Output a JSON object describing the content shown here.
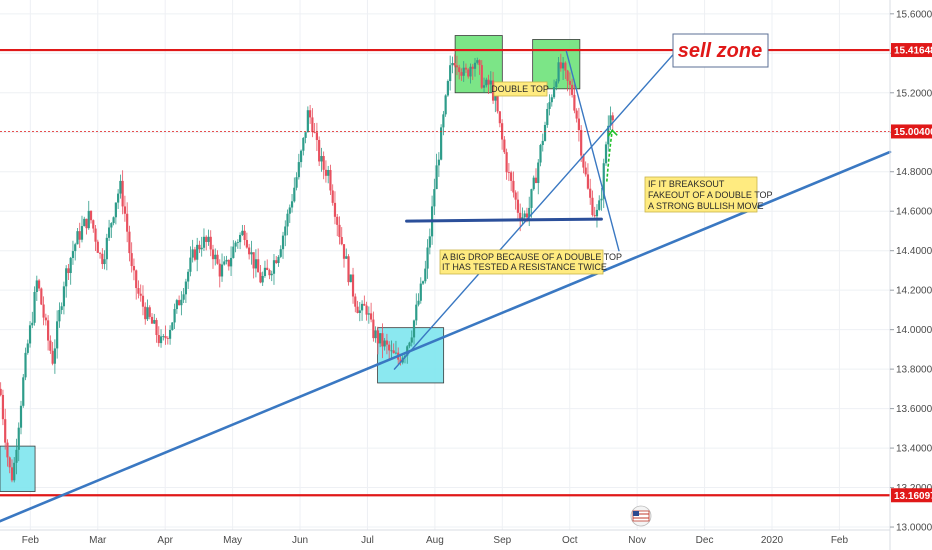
{
  "chart_data": {
    "type": "candlestick",
    "x_axis": {
      "labels": [
        {
          "label": "Feb",
          "month": 1
        },
        {
          "label": "Mar",
          "month": 2
        },
        {
          "label": "Apr",
          "month": 3
        },
        {
          "label": "May",
          "month": 4
        },
        {
          "label": "Jun",
          "month": 5
        },
        {
          "label": "Jul",
          "month": 6
        },
        {
          "label": "Aug",
          "month": 7
        },
        {
          "label": "Sep",
          "month": 8
        },
        {
          "label": "Oct",
          "month": 9
        },
        {
          "label": "Nov",
          "month": 10
        },
        {
          "label": "Dec",
          "month": 11
        },
        {
          "label": "2020",
          "month": 12
        },
        {
          "label": "Feb",
          "month": 13
        }
      ],
      "range": [
        0.55,
        13.75
      ]
    },
    "y_axis": {
      "ticks": [
        "15.60000",
        "15.40000",
        "15.20000",
        "15.00000",
        "14.80000",
        "14.60000",
        "14.40000",
        "14.20000",
        "14.00000",
        "13.80000",
        "13.60000",
        "13.40000",
        "13.20000",
        "13.00000"
      ],
      "range": [
        12.985,
        15.67
      ]
    },
    "price_path": [
      [
        0.55,
        13.7
      ],
      [
        0.6,
        13.55
      ],
      [
        0.68,
        13.3
      ],
      [
        0.74,
        13.25
      ],
      [
        0.8,
        13.45
      ],
      [
        0.88,
        13.7
      ],
      [
        0.95,
        13.9
      ],
      [
        1.02,
        14.05
      ],
      [
        1.1,
        14.25
      ],
      [
        1.18,
        14.1
      ],
      [
        1.26,
        13.95
      ],
      [
        1.33,
        13.85
      ],
      [
        1.42,
        14.05
      ],
      [
        1.5,
        14.25
      ],
      [
        1.58,
        14.35
      ],
      [
        1.68,
        14.45
      ],
      [
        1.78,
        14.52
      ],
      [
        1.88,
        14.58
      ],
      [
        1.96,
        14.48
      ],
      [
        2.05,
        14.35
      ],
      [
        2.12,
        14.42
      ],
      [
        2.2,
        14.55
      ],
      [
        2.28,
        14.68
      ],
      [
        2.34,
        14.72
      ],
      [
        2.42,
        14.55
      ],
      [
        2.5,
        14.3
      ],
      [
        2.6,
        14.18
      ],
      [
        2.72,
        14.08
      ],
      [
        2.85,
        14.0
      ],
      [
        2.95,
        13.92
      ],
      [
        3.05,
        14.0
      ],
      [
        3.18,
        14.12
      ],
      [
        3.3,
        14.25
      ],
      [
        3.42,
        14.38
      ],
      [
        3.55,
        14.45
      ],
      [
        3.68,
        14.42
      ],
      [
        3.8,
        14.3
      ],
      [
        3.92,
        14.32
      ],
      [
        4.05,
        14.45
      ],
      [
        4.18,
        14.5
      ],
      [
        4.3,
        14.35
      ],
      [
        4.42,
        14.25
      ],
      [
        4.55,
        14.3
      ],
      [
        4.68,
        14.4
      ],
      [
        4.8,
        14.55
      ],
      [
        4.9,
        14.7
      ],
      [
        4.98,
        14.82
      ],
      [
        5.05,
        14.95
      ],
      [
        5.12,
        15.1
      ],
      [
        5.18,
        15.05
      ],
      [
        5.26,
        14.9
      ],
      [
        5.34,
        14.82
      ],
      [
        5.42,
        14.8
      ],
      [
        5.5,
        14.65
      ],
      [
        5.58,
        14.5
      ],
      [
        5.66,
        14.38
      ],
      [
        5.74,
        14.25
      ],
      [
        5.82,
        14.15
      ],
      [
        5.9,
        14.08
      ],
      [
        5.98,
        14.12
      ],
      [
        6.06,
        14.0
      ],
      [
        6.16,
        13.95
      ],
      [
        6.26,
        13.92
      ],
      [
        6.36,
        13.87
      ],
      [
        6.46,
        13.85
      ],
      [
        6.56,
        13.9
      ],
      [
        6.66,
        14.0
      ],
      [
        6.76,
        14.15
      ],
      [
        6.86,
        14.3
      ],
      [
        6.93,
        14.5
      ],
      [
        7.0,
        14.75
      ],
      [
        7.08,
        14.95
      ],
      [
        7.16,
        15.15
      ],
      [
        7.22,
        15.3
      ],
      [
        7.28,
        15.38
      ],
      [
        7.36,
        15.35
      ],
      [
        7.44,
        15.28
      ],
      [
        7.5,
        15.32
      ],
      [
        7.58,
        15.38
      ],
      [
        7.66,
        15.3
      ],
      [
        7.74,
        15.22
      ],
      [
        7.82,
        15.25
      ],
      [
        7.9,
        15.15
      ],
      [
        8.0,
        14.95
      ],
      [
        8.08,
        14.8
      ],
      [
        8.16,
        14.7
      ],
      [
        8.24,
        14.6
      ],
      [
        8.32,
        14.57
      ],
      [
        8.4,
        14.62
      ],
      [
        8.48,
        14.75
      ],
      [
        8.56,
        14.9
      ],
      [
        8.64,
        15.05
      ],
      [
        8.72,
        15.18
      ],
      [
        8.8,
        15.3
      ],
      [
        8.88,
        15.33
      ],
      [
        8.96,
        15.25
      ],
      [
        9.04,
        15.2
      ],
      [
        9.12,
        15.05
      ],
      [
        9.2,
        14.85
      ],
      [
        9.28,
        14.68
      ],
      [
        9.36,
        14.6
      ],
      [
        9.42,
        14.58
      ],
      [
        9.48,
        14.72
      ],
      [
        9.54,
        14.95
      ],
      [
        9.6,
        15.12
      ],
      [
        9.65,
        15.1
      ]
    ],
    "highlight_boxes": [
      {
        "color": "#6ee27a",
        "x_range": [
          7.3,
          8.0
        ],
        "y_range": [
          15.2,
          15.49
        ]
      },
      {
        "color": "#6ee27a",
        "x_range": [
          8.45,
          9.15
        ],
        "y_range": [
          15.22,
          15.47
        ]
      },
      {
        "color": "#7ee6ee",
        "x_range": [
          6.15,
          7.13
        ],
        "y_range": [
          13.73,
          14.01
        ]
      },
      {
        "color": "#7ee6ee",
        "x_range": [
          0.55,
          1.07
        ],
        "y_range": [
          13.18,
          13.41
        ]
      }
    ],
    "trend_lines": [
      {
        "name": "support-trendline",
        "color": "#3a78c2",
        "width": 2.6,
        "from": [
          0.55,
          13.03
        ],
        "to": [
          13.75,
          14.9
        ]
      },
      {
        "name": "rising-channel-line",
        "color": "#3a78c2",
        "width": 1.4,
        "from": [
          6.4,
          13.8
        ],
        "to": [
          10.55,
          15.4
        ]
      },
      {
        "name": "falling-wedge-line",
        "color": "#3a78c2",
        "width": 1.4,
        "from": [
          8.95,
          15.41
        ],
        "to": [
          9.73,
          14.4
        ]
      },
      {
        "name": "neckline",
        "color": "#2b4f9a",
        "width": 3,
        "from": [
          6.58,
          14.55
        ],
        "to": [
          9.47,
          14.56
        ]
      }
    ],
    "horizontal_lines": [
      {
        "name": "resistance-line",
        "value": 15.41648,
        "label": "15.41648",
        "color": "#e01818",
        "width": 2.2,
        "dashed": false
      },
      {
        "name": "current-price-line",
        "value": 15.004,
        "label": "15.00400",
        "color": "#e01818",
        "width": 0.8,
        "dashed": true
      },
      {
        "name": "bottom-support-line",
        "value": 13.16097,
        "label": "13.16097",
        "color": "#e01818",
        "width": 2.2,
        "dashed": false
      }
    ],
    "annotations": [
      {
        "name": "sell-zone-label",
        "text": "sell zone",
        "box": "white-outlined"
      },
      {
        "name": "double-top-note",
        "text": "DOUBLE TOP",
        "box": "yellow"
      },
      {
        "name": "big-drop-note",
        "lines": [
          "A BIG  DROP BECAUSE OF A DOUBLE TOP",
          "IT HAS TESTED A RESISTANCE TWICE"
        ],
        "box": "yellow"
      },
      {
        "name": "breakout-note",
        "lines": [
          " IF IT BREAKSOUT",
          "FAKEOUT OF A DOUBLE TOP",
          "A STRONG BULLISH MOVE"
        ],
        "box": "yellow"
      }
    ],
    "arrow": {
      "name": "bullish-arrow",
      "color": "#1fbf2a",
      "style": "dashed"
    }
  },
  "colors": {
    "candle_up": "#2e9c8a",
    "candle_down": "#e8505e",
    "grid": "#eef0f4",
    "axis_text": "#4a4a4a",
    "note_fill": "#ffeb80",
    "note_stroke": "#c9b44a"
  }
}
